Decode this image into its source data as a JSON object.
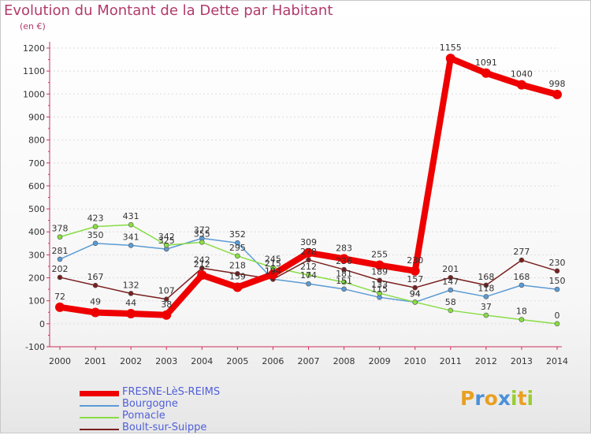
{
  "header": {
    "title": "Evolution du Montant de la Dette par Habitant",
    "unit": "(en €)"
  },
  "chart_data": {
    "type": "line",
    "x": [
      "2000",
      "2001",
      "2002",
      "2003",
      "2004",
      "2005",
      "2006",
      "2007",
      "2008",
      "2009",
      "2010",
      "2011",
      "2012",
      "2013",
      "2014"
    ],
    "ylim": [
      -100,
      1200
    ],
    "yticks": [
      -100,
      0,
      100,
      200,
      300,
      400,
      500,
      600,
      700,
      800,
      900,
      1000,
      1100,
      1200
    ],
    "grid": true,
    "legend_position": "bottom-left",
    "series": [
      {
        "name": "FRESNE-LèS-REIMS",
        "color": "#ee0000",
        "emphasis": true,
        "values": [
          72,
          49,
          44,
          38,
          212,
          159,
          215,
          309,
          283,
          255,
          230,
          1155,
          1091,
          1040,
          998
        ]
      },
      {
        "name": "Bourgogne",
        "color": "#5b9bd5",
        "values": [
          281,
          350,
          341,
          325,
          372,
          352,
          194,
          174,
          151,
          115,
          94,
          147,
          118,
          168,
          150
        ]
      },
      {
        "name": "Pomacle",
        "color": "#88dd44",
        "values": [
          378,
          423,
          431,
          342,
          355,
          295,
          245,
          212,
          181,
          133,
          94,
          58,
          37,
          18,
          0
        ]
      },
      {
        "name": "Boult-sur-Suippe",
        "color": "#7a1f1f",
        "values": [
          202,
          167,
          132,
          107,
          242,
          218,
          194,
          278,
          236,
          189,
          157,
          201,
          168,
          277,
          230
        ]
      }
    ]
  },
  "legend": {
    "items": [
      {
        "label": "FRESNE-LèS-REIMS"
      },
      {
        "label": "Bourgogne"
      },
      {
        "label": "Pomacle"
      },
      {
        "label": "Boult-sur-Suippe"
      }
    ]
  },
  "logo": {
    "letters": [
      {
        "ch": "P",
        "color": "#e8a020"
      },
      {
        "ch": "r",
        "color": "#4a90d9"
      },
      {
        "ch": "o",
        "color": "#e8a020"
      },
      {
        "ch": "x",
        "color": "#4a90d9"
      },
      {
        "ch": "i",
        "color": "#9acd32"
      },
      {
        "ch": "t",
        "color": "#e8a020"
      },
      {
        "ch": "i",
        "color": "#9acd32"
      }
    ]
  }
}
